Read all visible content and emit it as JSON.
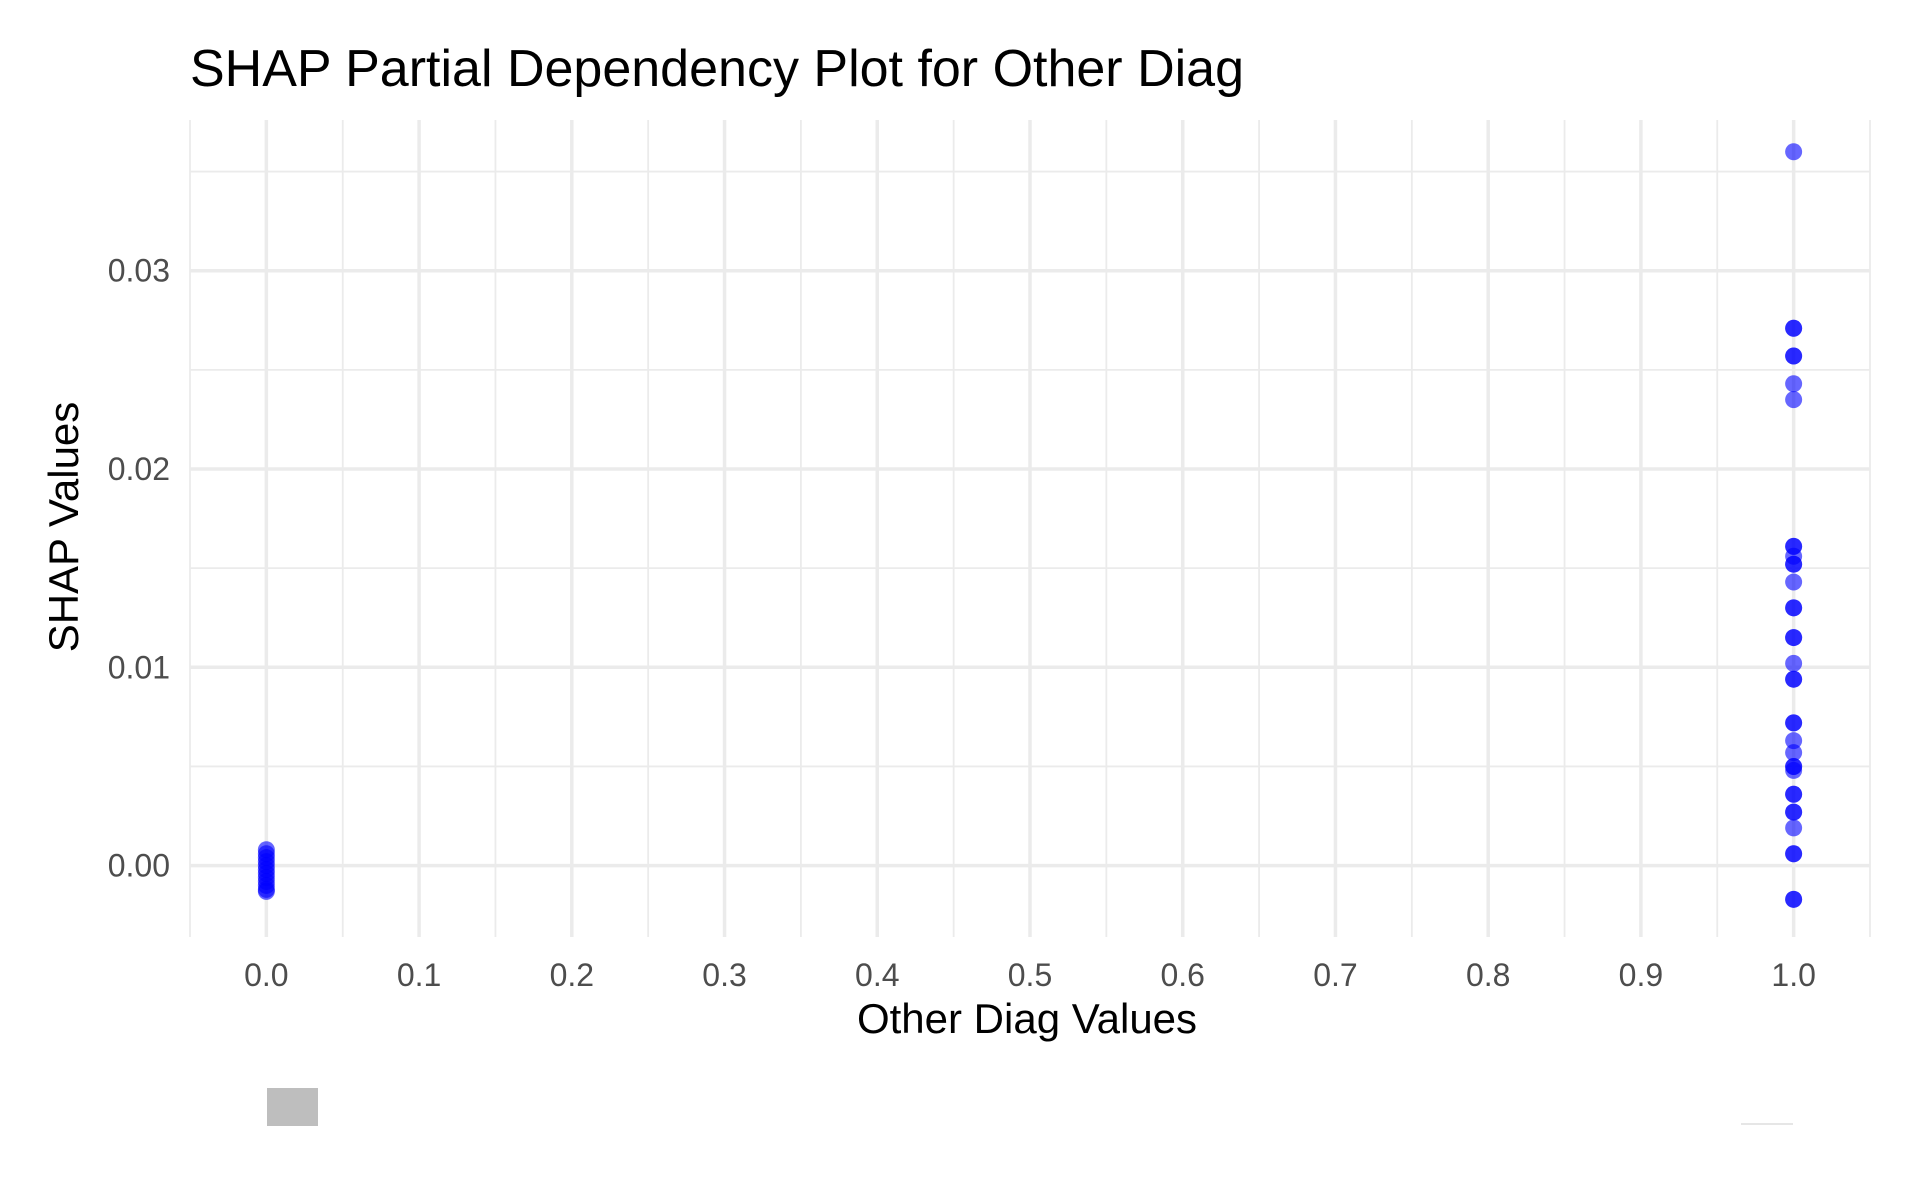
{
  "chart_data": {
    "type": "scatter",
    "title": "SHAP Partial Dependency Plot for Other Diag",
    "xlabel": "Other Diag Values",
    "ylabel": "SHAP Values",
    "xlim": [
      -0.05,
      1.05
    ],
    "ylim": [
      -0.0036,
      0.0376
    ],
    "x_ticks": [
      0.0,
      0.1,
      0.2,
      0.3,
      0.4,
      0.5,
      0.6,
      0.7,
      0.8,
      0.9,
      1.0
    ],
    "x_tick_labels": [
      "0.0",
      "0.1",
      "0.2",
      "0.3",
      "0.4",
      "0.5",
      "0.6",
      "0.7",
      "0.8",
      "0.9",
      "1.0"
    ],
    "y_ticks": [
      0.0,
      0.01,
      0.02,
      0.03
    ],
    "y_tick_labels": [
      "0.00",
      "0.01",
      "0.02",
      "0.03"
    ],
    "grid": true,
    "point_color": "#0000ff",
    "point_alpha": 0.6,
    "points": [
      {
        "x": 0.0,
        "y": 0.0008
      },
      {
        "x": 0.0,
        "y": 0.0006
      },
      {
        "x": 0.0,
        "y": 0.0004
      },
      {
        "x": 0.0,
        "y": 0.0002
      },
      {
        "x": 0.0,
        "y": 0.0
      },
      {
        "x": 0.0,
        "y": -0.0002
      },
      {
        "x": 0.0,
        "y": -0.0004
      },
      {
        "x": 0.0,
        "y": -0.0006
      },
      {
        "x": 0.0,
        "y": -0.0008
      },
      {
        "x": 0.0,
        "y": -0.001
      },
      {
        "x": 0.0,
        "y": -0.0012
      },
      {
        "x": 0.0,
        "y": -0.0013
      },
      {
        "x": 1.0,
        "y": 0.036
      },
      {
        "x": 1.0,
        "y": 0.0271
      },
      {
        "x": 1.0,
        "y": 0.0271
      },
      {
        "x": 1.0,
        "y": 0.0257
      },
      {
        "x": 1.0,
        "y": 0.0257
      },
      {
        "x": 1.0,
        "y": 0.0243
      },
      {
        "x": 1.0,
        "y": 0.0235
      },
      {
        "x": 1.0,
        "y": 0.0161
      },
      {
        "x": 1.0,
        "y": 0.0161
      },
      {
        "x": 1.0,
        "y": 0.0156
      },
      {
        "x": 1.0,
        "y": 0.0152
      },
      {
        "x": 1.0,
        "y": 0.0152
      },
      {
        "x": 1.0,
        "y": 0.0143
      },
      {
        "x": 1.0,
        "y": 0.013
      },
      {
        "x": 1.0,
        "y": 0.013
      },
      {
        "x": 1.0,
        "y": 0.0115
      },
      {
        "x": 1.0,
        "y": 0.0115
      },
      {
        "x": 1.0,
        "y": 0.0102
      },
      {
        "x": 1.0,
        "y": 0.0094
      },
      {
        "x": 1.0,
        "y": 0.0094
      },
      {
        "x": 1.0,
        "y": 0.0072
      },
      {
        "x": 1.0,
        "y": 0.0072
      },
      {
        "x": 1.0,
        "y": 0.0063
      },
      {
        "x": 1.0,
        "y": 0.0057
      },
      {
        "x": 1.0,
        "y": 0.005
      },
      {
        "x": 1.0,
        "y": 0.005
      },
      {
        "x": 1.0,
        "y": 0.0048
      },
      {
        "x": 1.0,
        "y": 0.0036
      },
      {
        "x": 1.0,
        "y": 0.0036
      },
      {
        "x": 1.0,
        "y": 0.0027
      },
      {
        "x": 1.0,
        "y": 0.0027
      },
      {
        "x": 1.0,
        "y": 0.0019
      },
      {
        "x": 1.0,
        "y": 0.0006
      },
      {
        "x": 1.0,
        "y": 0.0006
      },
      {
        "x": 1.0,
        "y": -0.0017
      },
      {
        "x": 1.0,
        "y": -0.0017
      }
    ]
  }
}
